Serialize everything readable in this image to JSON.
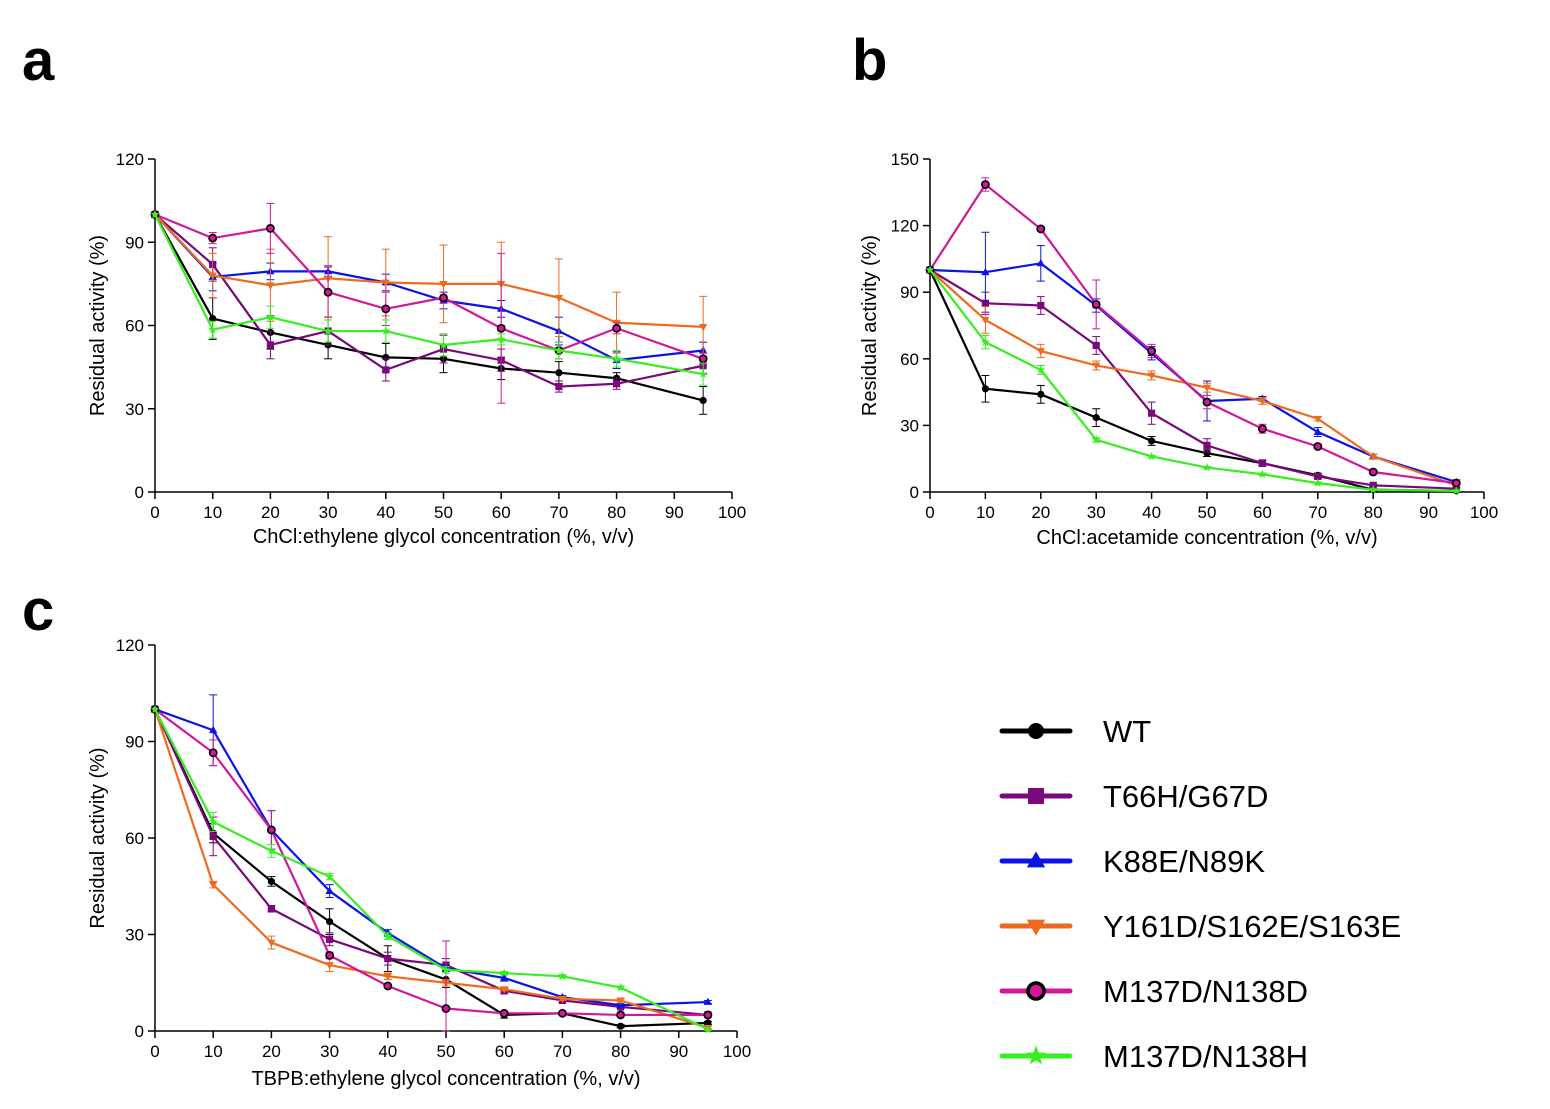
{
  "figure": {
    "legend": [
      {
        "name": "WT",
        "color": "#000000",
        "marker": "circle"
      },
      {
        "name": "T66H/G67D",
        "color": "#7a0a7a",
        "marker": "square"
      },
      {
        "name": "K88E/N89K",
        "color": "#0a14e6",
        "marker": "triangle-up"
      },
      {
        "name": "Y161D/S162E/S163E",
        "color": "#ee6a1e",
        "marker": "triangle-down"
      },
      {
        "name": "M137D/N138D",
        "color": "#d1179b",
        "marker": "circle-open"
      },
      {
        "name": "M137D/N138H",
        "color": "#37ee20",
        "marker": "star"
      }
    ]
  },
  "chart_data": [
    {
      "panel": "a",
      "type": "line",
      "title": "",
      "xlabel": "ChCl:ethylene glycol concentration (%, v/v)",
      "ylabel": "Residual activity (%)",
      "xlim": [
        0,
        100
      ],
      "ylim": [
        0,
        120
      ],
      "xticks": [
        0,
        10,
        20,
        30,
        40,
        50,
        60,
        70,
        80,
        90,
        100
      ],
      "yticks": [
        0,
        30,
        60,
        90,
        120
      ],
      "x": [
        0,
        10,
        20,
        30,
        40,
        50,
        60,
        70,
        80,
        95
      ],
      "series": [
        {
          "name": "WT",
          "values": [
            100,
            62.5,
            57.5,
            53,
            48.5,
            48,
            44.5,
            43,
            41,
            33
          ],
          "errors": [
            0,
            7.5,
            6,
            5,
            5,
            5,
            4,
            4,
            2,
            5
          ]
        },
        {
          "name": "T66H/G67D",
          "values": [
            100,
            82,
            53,
            58,
            44,
            51.5,
            47.5,
            38,
            39,
            45.5
          ],
          "errors": [
            0,
            6,
            5,
            5,
            4,
            5,
            4,
            2,
            2,
            3
          ]
        },
        {
          "name": "K88E/N89K",
          "values": [
            100,
            77.5,
            79.5,
            79.5,
            75.5,
            69,
            66,
            58,
            47.5,
            51
          ],
          "errors": [
            0,
            5,
            3,
            2,
            3,
            3,
            3,
            5,
            3,
            3
          ]
        },
        {
          "name": "Y161D/S162E/S163E",
          "values": [
            100,
            78,
            74.5,
            77,
            75.5,
            75,
            75,
            70,
            61,
            59.5
          ],
          "errors": [
            0,
            8,
            13,
            15,
            12,
            14,
            15,
            14,
            11,
            11
          ]
        },
        {
          "name": "M137D/N138D",
          "values": [
            100,
            91.5,
            95,
            72,
            66,
            70,
            59,
            51,
            59,
            48
          ],
          "errors": [
            0,
            2,
            9,
            9,
            6,
            2,
            27,
            3,
            2,
            2
          ]
        },
        {
          "name": "M137D/N138H",
          "values": [
            100,
            58.5,
            63,
            58,
            58,
            53,
            55,
            51,
            48,
            42.5
          ],
          "errors": [
            0,
            3,
            4,
            4,
            4,
            4,
            2,
            3,
            3,
            4
          ]
        }
      ]
    },
    {
      "panel": "b",
      "type": "line",
      "title": "",
      "xlabel": "ChCl:acetamide concentration (%, v/v)",
      "ylabel": "Residual activity (%)",
      "xlim": [
        0,
        100
      ],
      "ylim": [
        0,
        150
      ],
      "xticks": [
        0,
        10,
        20,
        30,
        40,
        50,
        60,
        70,
        80,
        90,
        100
      ],
      "yticks": [
        0,
        30,
        60,
        90,
        120,
        150
      ],
      "x": [
        0,
        10,
        20,
        30,
        40,
        50,
        60,
        70,
        80,
        95
      ],
      "series": [
        {
          "name": "WT",
          "values": [
            100,
            46.5,
            44,
            33.5,
            23,
            17.5,
            13,
            7.5,
            1,
            0.5
          ],
          "errors": [
            0,
            6,
            4,
            4,
            2,
            1.5,
            1,
            1,
            0.5,
            0.5
          ]
        },
        {
          "name": "T66H/G67D",
          "values": [
            100,
            85,
            84,
            66,
            35.5,
            21,
            13,
            7,
            3,
            1.5
          ],
          "errors": [
            0,
            5,
            4,
            4,
            5,
            3,
            1.5,
            1,
            0.5,
            0.5
          ]
        },
        {
          "name": "K88E/N89K",
          "values": [
            100,
            99,
            103,
            84,
            62.5,
            41,
            42,
            27,
            16,
            4.5
          ],
          "errors": [
            0,
            18,
            8,
            3,
            3,
            9,
            1,
            2,
            1,
            1
          ]
        },
        {
          "name": "Y161D/S162E/S163E",
          "values": [
            100,
            77.5,
            63.5,
            57,
            52.5,
            47,
            41,
            33,
            16,
            3
          ],
          "errors": [
            0,
            6,
            3,
            2,
            2,
            2,
            1.5,
            1,
            1,
            0.5
          ]
        },
        {
          "name": "M137D/N138D",
          "values": [
            100,
            138.5,
            118.5,
            84.5,
            63.5,
            40.5,
            28.5,
            20.5,
            9,
            4
          ],
          "errors": [
            0,
            3,
            1,
            11,
            3,
            3,
            2,
            1,
            1,
            0.5
          ]
        },
        {
          "name": "M137D/N138H",
          "values": [
            100,
            67.5,
            55,
            23.5,
            16,
            11,
            8,
            4,
            1,
            0.5
          ],
          "errors": [
            0,
            3,
            2,
            1,
            0.5,
            0.5,
            0.5,
            0.5,
            0.3,
            0.3
          ]
        }
      ]
    },
    {
      "panel": "c",
      "type": "line",
      "title": "",
      "xlabel": "TBPB:ethylene glycol concentration (%, v/v)",
      "ylabel": "Residual activity (%)",
      "xlim": [
        0,
        100
      ],
      "ylim": [
        0,
        120
      ],
      "xticks": [
        0,
        10,
        20,
        30,
        40,
        50,
        60,
        70,
        80,
        90,
        100
      ],
      "yticks": [
        0,
        30,
        60,
        90,
        120
      ],
      "x": [
        0,
        10,
        20,
        30,
        40,
        50,
        60,
        70,
        80,
        95
      ],
      "series": [
        {
          "name": "WT",
          "values": [
            100,
            61.5,
            46.5,
            34,
            22.5,
            16,
            5,
            5.5,
            1.5,
            2.5
          ],
          "errors": [
            0,
            3,
            1.5,
            4,
            4,
            2.5,
            1,
            0.5,
            0.5,
            0.5
          ]
        },
        {
          "name": "T66H/G67D",
          "values": [
            100,
            60.5,
            38,
            28.5,
            22.5,
            20.5,
            12.5,
            9.5,
            7.5,
            5
          ],
          "errors": [
            0,
            6,
            1,
            2,
            2,
            2,
            1,
            0.5,
            0.5,
            0.5
          ]
        },
        {
          "name": "K88E/N89K",
          "values": [
            100,
            93.5,
            62.5,
            43.5,
            30.5,
            19.5,
            16.5,
            10.5,
            8,
            9
          ],
          "errors": [
            0,
            11,
            6,
            2,
            1,
            1,
            1,
            0.5,
            0.5,
            0.5
          ]
        },
        {
          "name": "Y161D/S162E/S163E",
          "values": [
            100,
            45.5,
            27.5,
            20.5,
            17,
            15,
            13,
            10,
            9.5,
            1
          ],
          "errors": [
            0,
            1,
            2,
            2,
            1,
            1,
            0.5,
            0.5,
            0.5,
            0.5
          ]
        },
        {
          "name": "M137D/N138D",
          "values": [
            100,
            86.5,
            62.5,
            23.5,
            14,
            7,
            5.5,
            5.5,
            5,
            5
          ],
          "errors": [
            0,
            4,
            6,
            1,
            0.5,
            21,
            0.5,
            0.5,
            0.5,
            0.5
          ]
        },
        {
          "name": "M137D/N138H",
          "values": [
            100,
            65,
            56,
            48,
            29.5,
            19,
            18,
            17,
            13.5,
            0.5
          ],
          "errors": [
            0,
            3,
            2,
            1,
            1,
            1,
            0.5,
            0.5,
            0.5,
            0.3
          ]
        }
      ]
    }
  ]
}
